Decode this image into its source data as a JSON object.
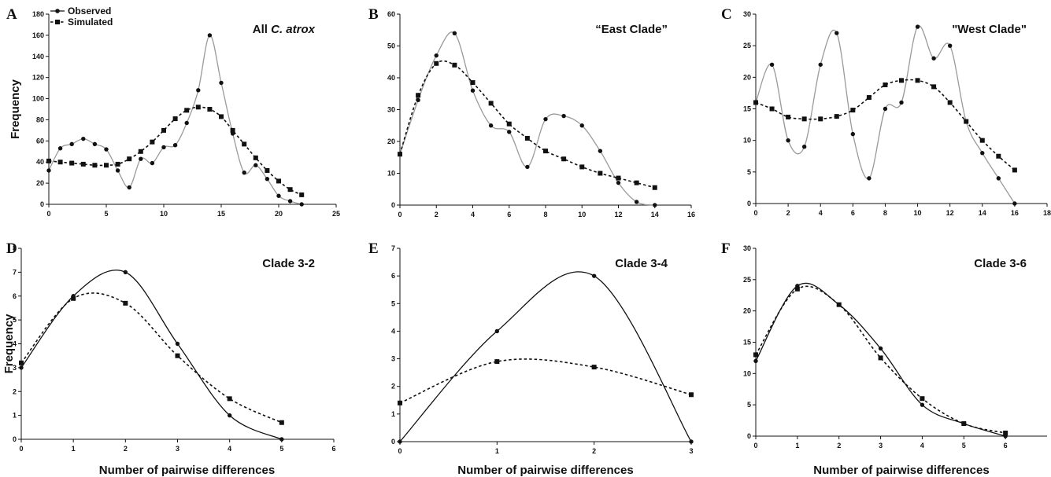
{
  "legend": {
    "observed": "Observed",
    "simulated": "Simulated"
  },
  "colors": {
    "observed_a_to_c": "#9a9a9a",
    "observed_d_to_f": "#111111",
    "simulated": "#111111",
    "axis": "#111111"
  },
  "chart_data": [
    {
      "panel": "A",
      "type": "line",
      "title": "All C. atrox",
      "title_plain": "All ",
      "title_italic": "C. atrox",
      "xlabel": "",
      "ylabel": "Frequency",
      "show_legend": true,
      "legend_position": "top-left",
      "xlim": [
        0,
        25
      ],
      "ylim": [
        0,
        180
      ],
      "xticks": [
        0,
        5,
        10,
        15,
        20,
        25
      ],
      "yticks": [
        0,
        20,
        40,
        60,
        80,
        100,
        120,
        140,
        160,
        180
      ],
      "series": [
        {
          "name": "Observed",
          "x": [
            0,
            1,
            2,
            3,
            4,
            5,
            6,
            7,
            8,
            9,
            10,
            11,
            12,
            13,
            14,
            15,
            16,
            17,
            18,
            19,
            20,
            21,
            22
          ],
          "y": [
            32,
            53,
            57,
            62,
            57,
            52,
            32,
            16,
            43,
            39,
            54,
            56,
            77,
            108,
            160,
            115,
            67,
            30,
            37,
            24,
            8,
            3,
            0
          ]
        },
        {
          "name": "Simulated",
          "x": [
            0,
            1,
            2,
            3,
            4,
            5,
            6,
            7,
            8,
            9,
            10,
            11,
            12,
            13,
            14,
            15,
            16,
            17,
            18,
            19,
            20,
            21,
            22
          ],
          "y": [
            41,
            40,
            39,
            38,
            37,
            37,
            38,
            43,
            50,
            59,
            70,
            81,
            89,
            92,
            90,
            83,
            70,
            57,
            44,
            32,
            22,
            14,
            9
          ]
        }
      ]
    },
    {
      "panel": "B",
      "type": "line",
      "title": "“East Clade”",
      "title_plain": "“East Clade”",
      "title_italic": "",
      "xlabel": "",
      "ylabel": "",
      "show_legend": false,
      "xlim": [
        0,
        16
      ],
      "ylim": [
        0,
        60
      ],
      "xticks": [
        0,
        2,
        4,
        6,
        8,
        10,
        12,
        14,
        16
      ],
      "yticks": [
        0,
        10,
        20,
        30,
        40,
        50,
        60
      ],
      "series": [
        {
          "name": "Observed",
          "x": [
            0,
            1,
            2,
            3,
            4,
            5,
            6,
            7,
            8,
            9,
            10,
            11,
            12,
            13,
            14
          ],
          "y": [
            16,
            33,
            47,
            54,
            36,
            25,
            23,
            12,
            27,
            28,
            25,
            17,
            7,
            1,
            0
          ]
        },
        {
          "name": "Simulated",
          "x": [
            0,
            1,
            2,
            3,
            4,
            5,
            6,
            7,
            8,
            9,
            10,
            11,
            12,
            13,
            14
          ],
          "y": [
            16,
            34.5,
            44.5,
            44,
            38.5,
            32,
            25.5,
            21,
            17,
            14.5,
            12,
            10,
            8.5,
            7,
            5.5
          ]
        }
      ]
    },
    {
      "panel": "C",
      "type": "line",
      "title": "\"West Clade\"",
      "title_plain": "\"West Clade\"",
      "title_italic": "",
      "xlabel": "",
      "ylabel": "",
      "show_legend": false,
      "xlim": [
        0,
        18
      ],
      "ylim": [
        0,
        30
      ],
      "xticks": [
        0,
        2,
        4,
        6,
        8,
        10,
        12,
        14,
        16,
        18
      ],
      "yticks": [
        0,
        5,
        10,
        15,
        20,
        25,
        30
      ],
      "series": [
        {
          "name": "Observed",
          "x": [
            0,
            1,
            2,
            3,
            4,
            5,
            6,
            7,
            8,
            9,
            10,
            11,
            12,
            13,
            14,
            15,
            16
          ],
          "y": [
            16,
            22,
            10,
            9,
            22,
            27,
            11,
            4,
            15,
            16,
            28,
            23,
            25,
            13,
            8,
            4,
            0
          ]
        },
        {
          "name": "Simulated",
          "x": [
            0,
            1,
            2,
            3,
            4,
            5,
            6,
            7,
            8,
            9,
            10,
            11,
            12,
            13,
            14,
            15,
            16
          ],
          "y": [
            16,
            15,
            13.7,
            13.4,
            13.4,
            13.8,
            14.8,
            16.8,
            18.8,
            19.5,
            19.5,
            18.5,
            16,
            13,
            10,
            7.5,
            5.3
          ]
        }
      ]
    },
    {
      "panel": "D",
      "type": "line",
      "title": "Clade 3-2",
      "title_plain": "Clade 3-2",
      "title_italic": "",
      "xlabel": "Number of pairwise differences",
      "ylabel": "Frequency",
      "show_legend": false,
      "xlim": [
        0,
        6
      ],
      "ylim": [
        0,
        8
      ],
      "xticks": [
        0,
        1,
        2,
        3,
        4,
        5,
        6
      ],
      "yticks": [
        0,
        1,
        2,
        3,
        4,
        5,
        6,
        7,
        8
      ],
      "series": [
        {
          "name": "Observed",
          "x": [
            0,
            1,
            2,
            3,
            4,
            5
          ],
          "y": [
            3,
            6,
            7,
            4,
            1,
            0
          ]
        },
        {
          "name": "Simulated",
          "x": [
            0,
            1,
            2,
            3,
            4,
            5
          ],
          "y": [
            3.2,
            5.9,
            5.7,
            3.5,
            1.7,
            0.7
          ]
        }
      ]
    },
    {
      "panel": "E",
      "type": "line",
      "title": "Clade 3-4",
      "title_plain": "Clade 3-4",
      "title_italic": "",
      "xlabel": "Number of pairwise differences",
      "ylabel": "",
      "show_legend": false,
      "xlim": [
        0,
        3
      ],
      "ylim": [
        0,
        7
      ],
      "xticks": [
        0,
        1,
        2,
        3
      ],
      "yticks": [
        0,
        1,
        2,
        3,
        4,
        5,
        6,
        7
      ],
      "series": [
        {
          "name": "Observed",
          "x": [
            0,
            1,
            2,
            3
          ],
          "y": [
            0,
            4,
            6,
            0
          ]
        },
        {
          "name": "Simulated",
          "x": [
            0,
            1,
            2,
            3
          ],
          "y": [
            1.4,
            2.9,
            2.7,
            1.7
          ]
        }
      ]
    },
    {
      "panel": "F",
      "type": "line",
      "title": "Clade 3-6",
      "title_plain": "Clade 3-6",
      "title_italic": "",
      "xlabel": "Number of pairwise differences",
      "ylabel": "",
      "show_legend": false,
      "xlim": [
        0,
        7
      ],
      "ylim": [
        0,
        30
      ],
      "xticks": [
        0,
        1,
        2,
        3,
        4,
        5,
        6
      ],
      "yticks": [
        0,
        5,
        10,
        15,
        20,
        25,
        30
      ],
      "series": [
        {
          "name": "Observed",
          "x": [
            0,
            1,
            2,
            3,
            4,
            5,
            6
          ],
          "y": [
            12,
            24,
            21,
            14,
            5,
            2,
            0
          ]
        },
        {
          "name": "Simulated",
          "x": [
            0,
            1,
            2,
            3,
            4,
            5,
            6
          ],
          "y": [
            13,
            23.5,
            21,
            12.5,
            6,
            2,
            0.5
          ]
        }
      ]
    }
  ]
}
